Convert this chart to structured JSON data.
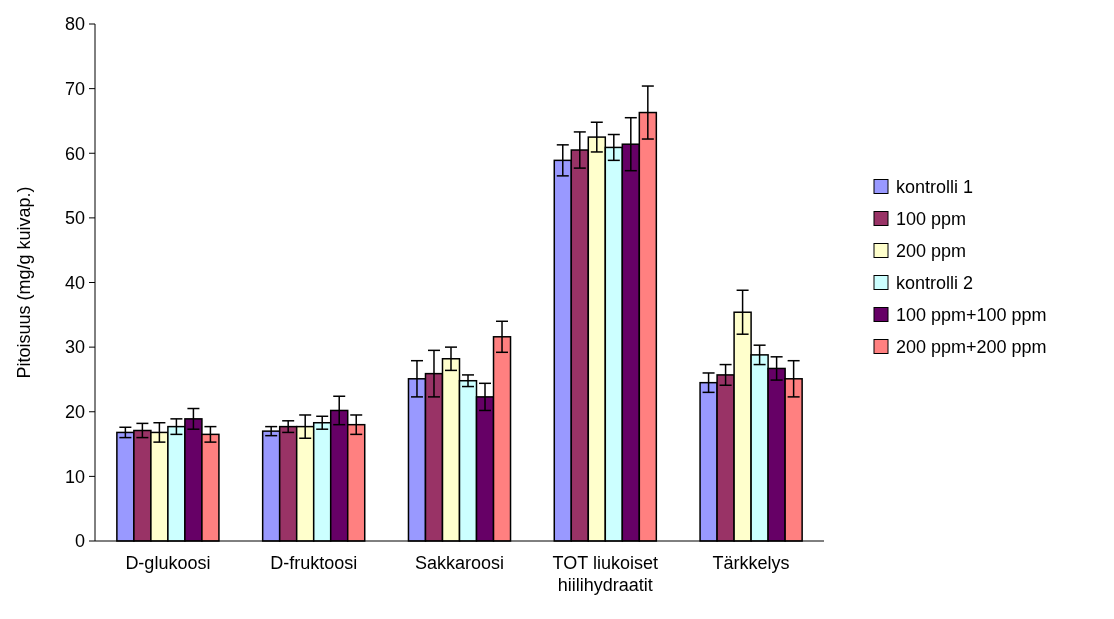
{
  "chart_data": {
    "type": "bar",
    "ylabel": "Pitoisuus (mg/g kuivap.)",
    "categories": [
      "D-glukoosi",
      "D-fruktoosi",
      "Sakkaroosi",
      "TOT liukoiset hiilihydraatit",
      "Tärkkelys"
    ],
    "series": [
      {
        "name": "kontrolli 1",
        "color": "#9999ff",
        "values": [
          16.8,
          17.0,
          25.1,
          58.9,
          24.5
        ],
        "errors": [
          0.8,
          0.7,
          2.8,
          2.4,
          1.5
        ]
      },
      {
        "name": "100 ppm",
        "color": "#993366",
        "values": [
          17.1,
          17.7,
          25.9,
          60.5,
          25.7
        ],
        "errors": [
          1.1,
          0.9,
          3.6,
          2.8,
          1.6
        ]
      },
      {
        "name": "200 ppm",
        "color": "#ffffcc",
        "values": [
          16.8,
          17.7,
          28.2,
          62.5,
          35.4
        ],
        "errors": [
          1.5,
          1.8,
          1.8,
          2.3,
          3.4
        ]
      },
      {
        "name": "kontrolli 2",
        "color": "#ccffff",
        "values": [
          17.7,
          18.3,
          24.8,
          60.9,
          28.8
        ],
        "errors": [
          1.2,
          1.0,
          0.9,
          2.0,
          1.5
        ]
      },
      {
        "name": "100 ppm+100 ppm",
        "color": "#660066",
        "values": [
          18.9,
          20.2,
          22.3,
          61.4,
          26.7
        ],
        "errors": [
          1.6,
          2.2,
          2.1,
          4.1,
          1.8
        ]
      },
      {
        "name": "200 ppm+200 ppm",
        "color": "#ff8080",
        "values": [
          16.5,
          18.0,
          31.6,
          66.3,
          25.1
        ],
        "errors": [
          1.2,
          1.5,
          2.4,
          4.1,
          2.8
        ]
      }
    ],
    "ylim": [
      0,
      80
    ],
    "yticks": [
      0,
      10,
      20,
      30,
      40,
      50,
      60,
      70,
      80
    ],
    "grid": false,
    "legend": "right"
  }
}
